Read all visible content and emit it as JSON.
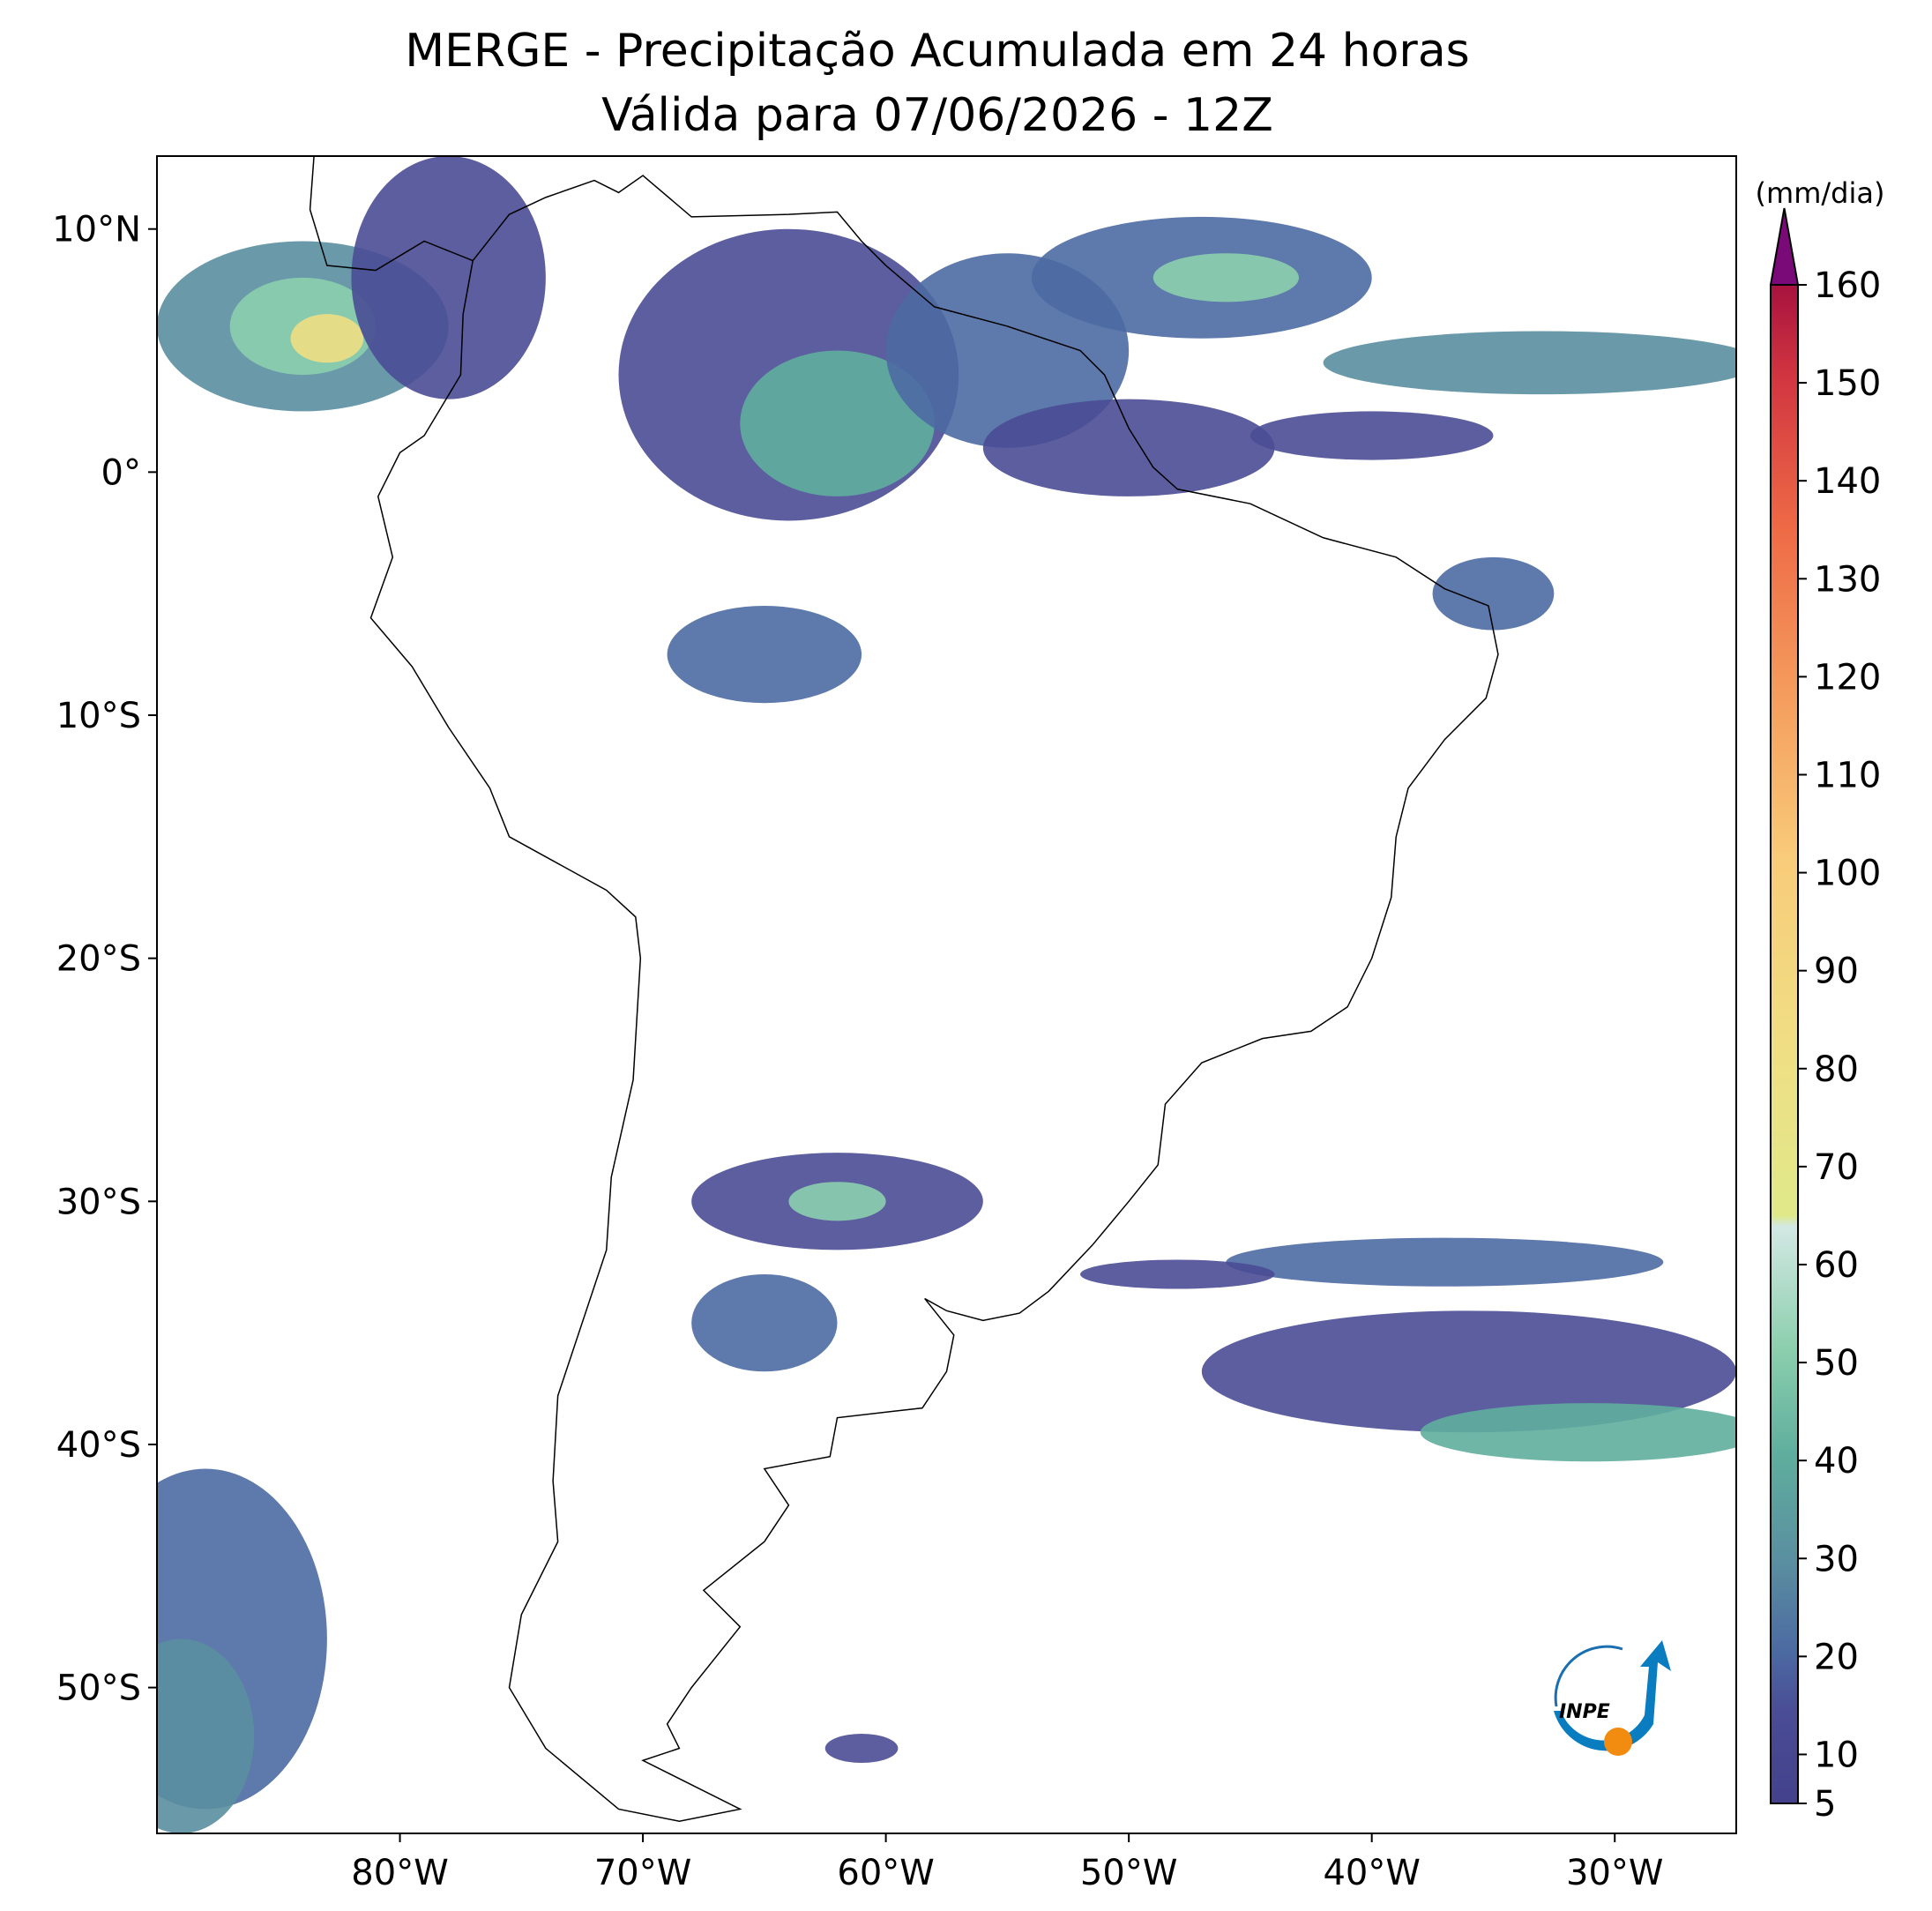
{
  "chart_data": {
    "type": "map",
    "title": "MERGE - Precipitação Acumulada em 24 horas",
    "subtitle": "Válida para 07/06/2026 - 12Z",
    "xlim": [
      -90,
      -25
    ],
    "ylim": [
      -56,
      13
    ],
    "xticks": [
      {
        "value": -80,
        "label": "80°W"
      },
      {
        "value": -70,
        "label": "70°W"
      },
      {
        "value": -60,
        "label": "60°W"
      },
      {
        "value": -50,
        "label": "50°W"
      },
      {
        "value": -40,
        "label": "40°W"
      },
      {
        "value": -30,
        "label": "30°W"
      }
    ],
    "yticks": [
      {
        "value": 10,
        "label": "10°N"
      },
      {
        "value": 0,
        "label": "0°"
      },
      {
        "value": -10,
        "label": "10°S"
      },
      {
        "value": -20,
        "label": "20°S"
      },
      {
        "value": -30,
        "label": "30°S"
      },
      {
        "value": -40,
        "label": "40°S"
      },
      {
        "value": -50,
        "label": "50°S"
      }
    ],
    "colorbar": {
      "label": "(mm/dia)",
      "range": [
        5,
        160
      ],
      "ticks": [
        5,
        10,
        20,
        30,
        40,
        50,
        60,
        70,
        80,
        90,
        100,
        110,
        120,
        130,
        140,
        150,
        160
      ]
    },
    "logo": "INPE"
  }
}
